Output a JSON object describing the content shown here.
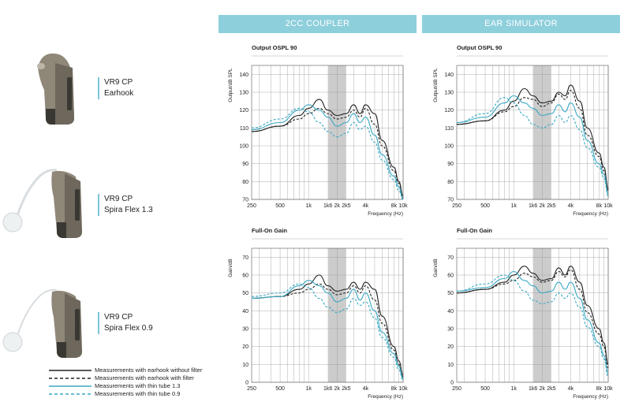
{
  "headers": {
    "coupler": "2CC COUPLER",
    "simulator": "EAR SIMULATOR"
  },
  "devices": [
    {
      "name": "VR9 CP",
      "variant": "Earhook"
    },
    {
      "name": "VR9 CP",
      "variant": "Spira Flex 1.3"
    },
    {
      "name": "VR9 CP",
      "variant": "Spira Flex 0.9"
    }
  ],
  "legend": [
    {
      "label": "Measurements with earhook without filter",
      "color": "#222222",
      "dash": ""
    },
    {
      "label": "Measurements with earhook with filter",
      "color": "#222222",
      "dash": "4,3"
    },
    {
      "label": "Measurements with thin tube 1.3",
      "color": "#3aa9c4",
      "dash": ""
    },
    {
      "label": "Measurements with thin tube 0.9",
      "color": "#3aa9c4",
      "dash": "4,3"
    }
  ],
  "colors": {
    "header": "#8ecfdc",
    "accent": "#3aa9c4",
    "dark": "#222222",
    "band": "#cccccc"
  },
  "chart_data": [
    {
      "type": "line",
      "title": "Output OSPL 90",
      "section": "2CC COUPLER",
      "ylabel": "Output/dB SPL",
      "xlabel": "Frequency (Hz)",
      "ylim": [
        70,
        145
      ],
      "xscale": "log",
      "xlim": [
        250,
        10000
      ],
      "xticks": [
        "250",
        "500",
        "1k",
        "1k6",
        "2k",
        "2k5",
        "4k",
        "8k",
        "10k"
      ],
      "yticks": [
        70,
        80,
        90,
        100,
        110,
        120,
        130,
        140
      ],
      "shaded_band": [
        1600,
        2500
      ],
      "x": [
        250,
        500,
        800,
        1000,
        1300,
        1600,
        2000,
        2500,
        3000,
        3500,
        4000,
        5000,
        6000,
        8000,
        9000,
        10000
      ],
      "series": [
        {
          "style": "solid-black",
          "values": [
            108,
            111,
            117,
            121,
            126,
            120,
            117,
            118,
            123,
            118,
            123,
            118,
            103,
            88,
            80,
            72
          ]
        },
        {
          "style": "dashed-black",
          "values": [
            108,
            111,
            115,
            118,
            121,
            118,
            115,
            116,
            120,
            116,
            121,
            112,
            100,
            86,
            79,
            71
          ]
        },
        {
          "style": "solid-blue",
          "values": [
            109,
            113,
            120,
            123,
            120,
            116,
            111,
            113,
            118,
            113,
            116,
            106,
            95,
            83,
            77,
            70
          ]
        },
        {
          "style": "dashed-blue",
          "values": [
            110,
            115,
            121,
            119,
            113,
            108,
            105,
            107,
            113,
            109,
            111,
            102,
            92,
            81,
            75,
            70
          ]
        }
      ]
    },
    {
      "type": "line",
      "title": "Output OSPL 90",
      "section": "EAR SIMULATOR",
      "ylabel": "Output/dB SPL",
      "xlabel": "Frequency (Hz)",
      "ylim": [
        70,
        145
      ],
      "xscale": "log",
      "xlim": [
        250,
        10000
      ],
      "xticks": [
        "250",
        "500",
        "1k",
        "1k6",
        "2k",
        "2k5",
        "4k",
        "8k",
        "10k"
      ],
      "yticks": [
        70,
        80,
        90,
        100,
        110,
        120,
        130,
        140
      ],
      "shaded_band": [
        1600,
        2500
      ],
      "x": [
        250,
        500,
        800,
        1000,
        1300,
        1600,
        2000,
        2500,
        3000,
        3500,
        4000,
        5000,
        6000,
        8000,
        9000,
        10000
      ],
      "series": [
        {
          "style": "solid-black",
          "values": [
            112,
            114,
            120,
            125,
            132,
            128,
            124,
            125,
            130,
            128,
            134,
            125,
            110,
            96,
            88,
            76
          ]
        },
        {
          "style": "dashed-black",
          "values": [
            112,
            114,
            119,
            122,
            127,
            126,
            122,
            124,
            129,
            126,
            131,
            121,
            106,
            94,
            86,
            75
          ]
        },
        {
          "style": "solid-blue",
          "values": [
            113,
            116,
            124,
            128,
            124,
            121,
            117,
            118,
            123,
            119,
            124,
            116,
            103,
            90,
            84,
            73
          ]
        },
        {
          "style": "dashed-blue",
          "values": [
            113,
            118,
            127,
            124,
            117,
            112,
            110,
            112,
            117,
            113,
            117,
            109,
            99,
            88,
            82,
            72
          ]
        }
      ]
    },
    {
      "type": "line",
      "title": "Full-On Gain",
      "section": "2CC COUPLER",
      "ylabel": "Gain/dB",
      "xlabel": "Frequency (Hz)",
      "ylim": [
        0,
        75
      ],
      "xscale": "log",
      "xlim": [
        250,
        10000
      ],
      "xticks": [
        "250",
        "500",
        "1k",
        "1k6",
        "2k",
        "2k5",
        "4k",
        "8k",
        "10k"
      ],
      "yticks": [
        0,
        10,
        20,
        30,
        40,
        50,
        60,
        70
      ],
      "shaded_band": [
        1600,
        2500
      ],
      "x": [
        250,
        500,
        800,
        1000,
        1300,
        1600,
        2000,
        2500,
        3000,
        3500,
        4000,
        5000,
        6000,
        8000,
        9000,
        10000
      ],
      "series": [
        {
          "style": "solid-black",
          "values": [
            47,
            48,
            52,
            55,
            60,
            54,
            51,
            52,
            56,
            52,
            56,
            52,
            37,
            20,
            12,
            4
          ]
        },
        {
          "style": "dashed-black",
          "values": [
            47,
            48,
            50,
            52,
            55,
            52,
            49,
            50,
            54,
            50,
            54,
            46,
            33,
            18,
            10,
            3
          ]
        },
        {
          "style": "solid-blue",
          "values": [
            47,
            48,
            54,
            57,
            54,
            50,
            45,
            47,
            52,
            46,
            50,
            40,
            28,
            16,
            9,
            2
          ]
        },
        {
          "style": "dashed-blue",
          "values": [
            48,
            50,
            55,
            53,
            47,
            42,
            39,
            41,
            47,
            43,
            45,
            36,
            25,
            14,
            7,
            1
          ]
        }
      ]
    },
    {
      "type": "line",
      "title": "Full-On Gain",
      "section": "EAR SIMULATOR",
      "ylabel": "Gain/dB",
      "xlabel": "Frequency (Hz)",
      "ylim": [
        0,
        75
      ],
      "xscale": "log",
      "xlim": [
        250,
        10000
      ],
      "xticks": [
        "250",
        "500",
        "1k",
        "1k6",
        "2k",
        "2k5",
        "4k",
        "8k",
        "10k"
      ],
      "yticks": [
        0,
        10,
        20,
        30,
        40,
        50,
        60,
        70
      ],
      "shaded_band": [
        1600,
        2500
      ],
      "x": [
        250,
        500,
        800,
        1000,
        1300,
        1600,
        2000,
        2500,
        3000,
        3500,
        4000,
        5000,
        6000,
        8000,
        9000,
        10000
      ],
      "series": [
        {
          "style": "solid-black",
          "values": [
            50,
            52,
            56,
            60,
            65,
            61,
            57,
            58,
            64,
            60,
            65,
            56,
            43,
            30,
            22,
            10
          ]
        },
        {
          "style": "dashed-black",
          "values": [
            50,
            52,
            55,
            57,
            61,
            59,
            56,
            57,
            62,
            59,
            63,
            52,
            39,
            27,
            20,
            8
          ]
        },
        {
          "style": "solid-blue",
          "values": [
            51,
            53,
            58,
            62,
            57,
            54,
            50,
            51,
            56,
            52,
            56,
            47,
            35,
            22,
            15,
            5
          ]
        },
        {
          "style": "dashed-blue",
          "values": [
            51,
            55,
            60,
            57,
            51,
            46,
            44,
            45,
            50,
            47,
            50,
            42,
            31,
            20,
            13,
            3
          ]
        }
      ]
    }
  ]
}
